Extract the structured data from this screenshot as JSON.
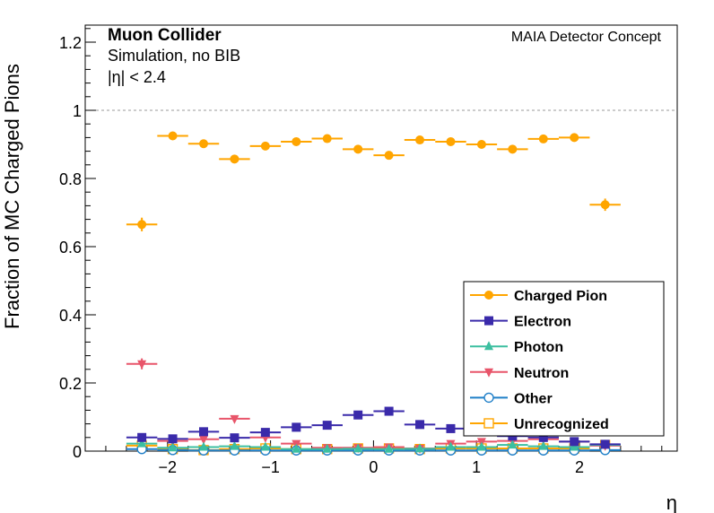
{
  "chart_data": {
    "type": "scatter",
    "title_main": "Muon Collider",
    "title_right": "MAIA Detector Concept",
    "sub1": "Simulation, no BIB",
    "sub2": "|η| < 2.4",
    "xlabel": "η",
    "ylabel": "Fraction of MC Charged Pions",
    "xlim": [
      -2.8,
      2.95
    ],
    "ylim": [
      0,
      1.25
    ],
    "x_ticks": [
      "−2",
      "−1",
      "0",
      "1",
      "2"
    ],
    "x_tick_values": [
      -2,
      -1,
      0,
      1,
      2
    ],
    "y_ticks": [
      "0",
      "0.2",
      "0.4",
      "0.6",
      "0.8",
      "1",
      "1.2"
    ],
    "y_tick_values": [
      0,
      0.2,
      0.4,
      0.6,
      0.8,
      1.0,
      1.2
    ],
    "reference_line": 1.0,
    "legend_position": "bottom-right",
    "x": [
      -2.25,
      -1.95,
      -1.65,
      -1.35,
      -1.05,
      -0.75,
      -0.45,
      -0.15,
      0.15,
      0.45,
      0.75,
      1.05,
      1.35,
      1.65,
      1.95,
      2.25
    ],
    "bin_half_width": 0.15,
    "series": [
      {
        "name": "Charged Pion",
        "color": "#ffa500",
        "marker": "circle-filled",
        "values": [
          0.665,
          0.925,
          0.902,
          0.857,
          0.895,
          0.908,
          0.917,
          0.886,
          0.868,
          0.913,
          0.908,
          0.9,
          0.886,
          0.916,
          0.92,
          0.723
        ],
        "errors": [
          0.02,
          0.006,
          0.007,
          0.008,
          0.007,
          0.007,
          0.006,
          0.007,
          0.007,
          0.006,
          0.006,
          0.006,
          0.007,
          0.006,
          0.006,
          0.018
        ]
      },
      {
        "name": "Electron",
        "color": "#3a2aaa",
        "marker": "square-filled",
        "values": [
          0.04,
          0.036,
          0.057,
          0.039,
          0.055,
          0.07,
          0.076,
          0.106,
          0.117,
          0.078,
          0.066,
          0.06,
          0.044,
          0.04,
          0.028,
          0.02
        ],
        "errors": [
          0.006,
          0.004,
          0.004,
          0.004,
          0.004,
          0.004,
          0.004,
          0.005,
          0.005,
          0.004,
          0.004,
          0.004,
          0.004,
          0.004,
          0.004,
          0.006
        ]
      },
      {
        "name": "Photon",
        "color": "#3cbfa0",
        "marker": "triangle-up-filled",
        "values": [
          0.022,
          0.01,
          0.012,
          0.014,
          0.012,
          0.006,
          0.006,
          0.007,
          0.006,
          0.007,
          0.012,
          0.012,
          0.018,
          0.014,
          0.012,
          0.018
        ],
        "errors": [
          0.004,
          0.002,
          0.002,
          0.002,
          0.002,
          0.002,
          0.002,
          0.002,
          0.002,
          0.002,
          0.002,
          0.002,
          0.002,
          0.002,
          0.002,
          0.004
        ]
      },
      {
        "name": "Neutron",
        "color": "#e8556a",
        "marker": "triangle-down-filled",
        "values": [
          0.256,
          0.03,
          0.035,
          0.095,
          0.04,
          0.022,
          0.01,
          0.01,
          0.012,
          0.008,
          0.022,
          0.028,
          0.03,
          0.035,
          0.028,
          0.016
        ],
        "errors": [
          0.016,
          0.003,
          0.003,
          0.005,
          0.003,
          0.003,
          0.002,
          0.002,
          0.002,
          0.002,
          0.003,
          0.003,
          0.003,
          0.003,
          0.003,
          0.004
        ]
      },
      {
        "name": "Other",
        "color": "#1f7fc8",
        "marker": "circle-open",
        "values": [
          0.006,
          0.003,
          0.002,
          0.002,
          0.002,
          0.002,
          0.002,
          0.002,
          0.002,
          0.002,
          0.002,
          0.002,
          0.002,
          0.002,
          0.002,
          0.003
        ],
        "errors": [
          0.002,
          0.001,
          0.001,
          0.001,
          0.001,
          0.001,
          0.001,
          0.001,
          0.001,
          0.001,
          0.001,
          0.001,
          0.001,
          0.001,
          0.001,
          0.002
        ]
      },
      {
        "name": "Unrecognized",
        "color": "#ffa500",
        "marker": "square-open",
        "values": [
          0.016,
          0.006,
          0.003,
          0.006,
          0.008,
          0.006,
          0.006,
          0.008,
          0.008,
          0.006,
          0.008,
          0.008,
          0.008,
          0.008,
          0.008,
          0.018
        ],
        "errors": [
          0.003,
          0.002,
          0.002,
          0.002,
          0.002,
          0.002,
          0.002,
          0.002,
          0.002,
          0.002,
          0.002,
          0.002,
          0.002,
          0.002,
          0.002,
          0.004
        ]
      }
    ]
  }
}
